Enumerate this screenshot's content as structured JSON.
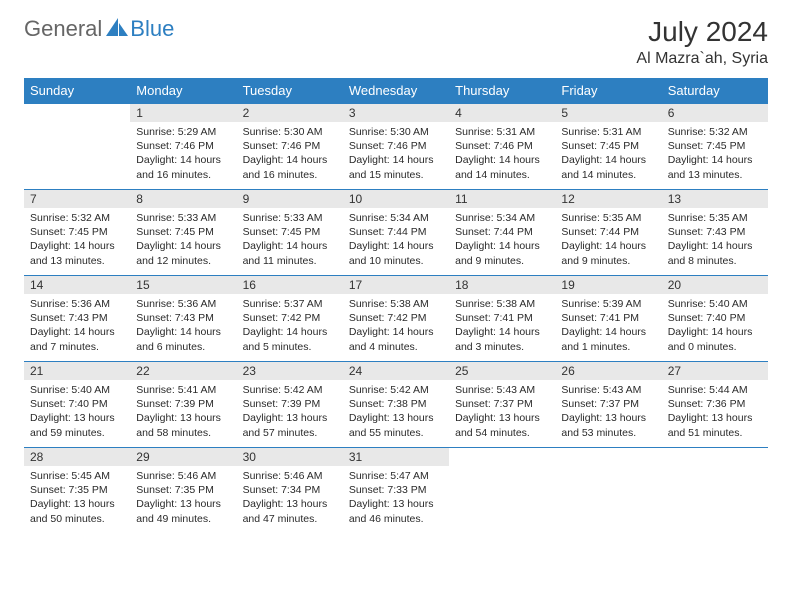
{
  "logo": {
    "part1": "General",
    "part2": "Blue"
  },
  "title": "July 2024",
  "location": "Al Mazra`ah, Syria",
  "colors": {
    "header_bg": "#2d7fc1",
    "header_fg": "#ffffff",
    "daynum_bg": "#e8e8e8",
    "rule": "#2d7fc1",
    "page_bg": "#ffffff",
    "text": "#2a2a2a",
    "logo_gray": "#666666",
    "logo_blue": "#2d7fc1"
  },
  "weekdays": [
    "Sunday",
    "Monday",
    "Tuesday",
    "Wednesday",
    "Thursday",
    "Friday",
    "Saturday"
  ],
  "weeks": [
    [
      null,
      {
        "n": "1",
        "sr": "5:29 AM",
        "ss": "7:46 PM",
        "dh": "14",
        "dm": "16"
      },
      {
        "n": "2",
        "sr": "5:30 AM",
        "ss": "7:46 PM",
        "dh": "14",
        "dm": "16"
      },
      {
        "n": "3",
        "sr": "5:30 AM",
        "ss": "7:46 PM",
        "dh": "14",
        "dm": "15"
      },
      {
        "n": "4",
        "sr": "5:31 AM",
        "ss": "7:46 PM",
        "dh": "14",
        "dm": "14"
      },
      {
        "n": "5",
        "sr": "5:31 AM",
        "ss": "7:45 PM",
        "dh": "14",
        "dm": "14"
      },
      {
        "n": "6",
        "sr": "5:32 AM",
        "ss": "7:45 PM",
        "dh": "14",
        "dm": "13"
      }
    ],
    [
      {
        "n": "7",
        "sr": "5:32 AM",
        "ss": "7:45 PM",
        "dh": "14",
        "dm": "13"
      },
      {
        "n": "8",
        "sr": "5:33 AM",
        "ss": "7:45 PM",
        "dh": "14",
        "dm": "12"
      },
      {
        "n": "9",
        "sr": "5:33 AM",
        "ss": "7:45 PM",
        "dh": "14",
        "dm": "11"
      },
      {
        "n": "10",
        "sr": "5:34 AM",
        "ss": "7:44 PM",
        "dh": "14",
        "dm": "10"
      },
      {
        "n": "11",
        "sr": "5:34 AM",
        "ss": "7:44 PM",
        "dh": "14",
        "dm": "9"
      },
      {
        "n": "12",
        "sr": "5:35 AM",
        "ss": "7:44 PM",
        "dh": "14",
        "dm": "9"
      },
      {
        "n": "13",
        "sr": "5:35 AM",
        "ss": "7:43 PM",
        "dh": "14",
        "dm": "8"
      }
    ],
    [
      {
        "n": "14",
        "sr": "5:36 AM",
        "ss": "7:43 PM",
        "dh": "14",
        "dm": "7"
      },
      {
        "n": "15",
        "sr": "5:36 AM",
        "ss": "7:43 PM",
        "dh": "14",
        "dm": "6"
      },
      {
        "n": "16",
        "sr": "5:37 AM",
        "ss": "7:42 PM",
        "dh": "14",
        "dm": "5"
      },
      {
        "n": "17",
        "sr": "5:38 AM",
        "ss": "7:42 PM",
        "dh": "14",
        "dm": "4"
      },
      {
        "n": "18",
        "sr": "5:38 AM",
        "ss": "7:41 PM",
        "dh": "14",
        "dm": "3"
      },
      {
        "n": "19",
        "sr": "5:39 AM",
        "ss": "7:41 PM",
        "dh": "14",
        "dm": "1"
      },
      {
        "n": "20",
        "sr": "5:40 AM",
        "ss": "7:40 PM",
        "dh": "14",
        "dm": "0"
      }
    ],
    [
      {
        "n": "21",
        "sr": "5:40 AM",
        "ss": "7:40 PM",
        "dh": "13",
        "dm": "59"
      },
      {
        "n": "22",
        "sr": "5:41 AM",
        "ss": "7:39 PM",
        "dh": "13",
        "dm": "58"
      },
      {
        "n": "23",
        "sr": "5:42 AM",
        "ss": "7:39 PM",
        "dh": "13",
        "dm": "57"
      },
      {
        "n": "24",
        "sr": "5:42 AM",
        "ss": "7:38 PM",
        "dh": "13",
        "dm": "55"
      },
      {
        "n": "25",
        "sr": "5:43 AM",
        "ss": "7:37 PM",
        "dh": "13",
        "dm": "54"
      },
      {
        "n": "26",
        "sr": "5:43 AM",
        "ss": "7:37 PM",
        "dh": "13",
        "dm": "53"
      },
      {
        "n": "27",
        "sr": "5:44 AM",
        "ss": "7:36 PM",
        "dh": "13",
        "dm": "51"
      }
    ],
    [
      {
        "n": "28",
        "sr": "5:45 AM",
        "ss": "7:35 PM",
        "dh": "13",
        "dm": "50"
      },
      {
        "n": "29",
        "sr": "5:46 AM",
        "ss": "7:35 PM",
        "dh": "13",
        "dm": "49"
      },
      {
        "n": "30",
        "sr": "5:46 AM",
        "ss": "7:34 PM",
        "dh": "13",
        "dm": "47"
      },
      {
        "n": "31",
        "sr": "5:47 AM",
        "ss": "7:33 PM",
        "dh": "13",
        "dm": "46"
      },
      null,
      null,
      null
    ]
  ]
}
